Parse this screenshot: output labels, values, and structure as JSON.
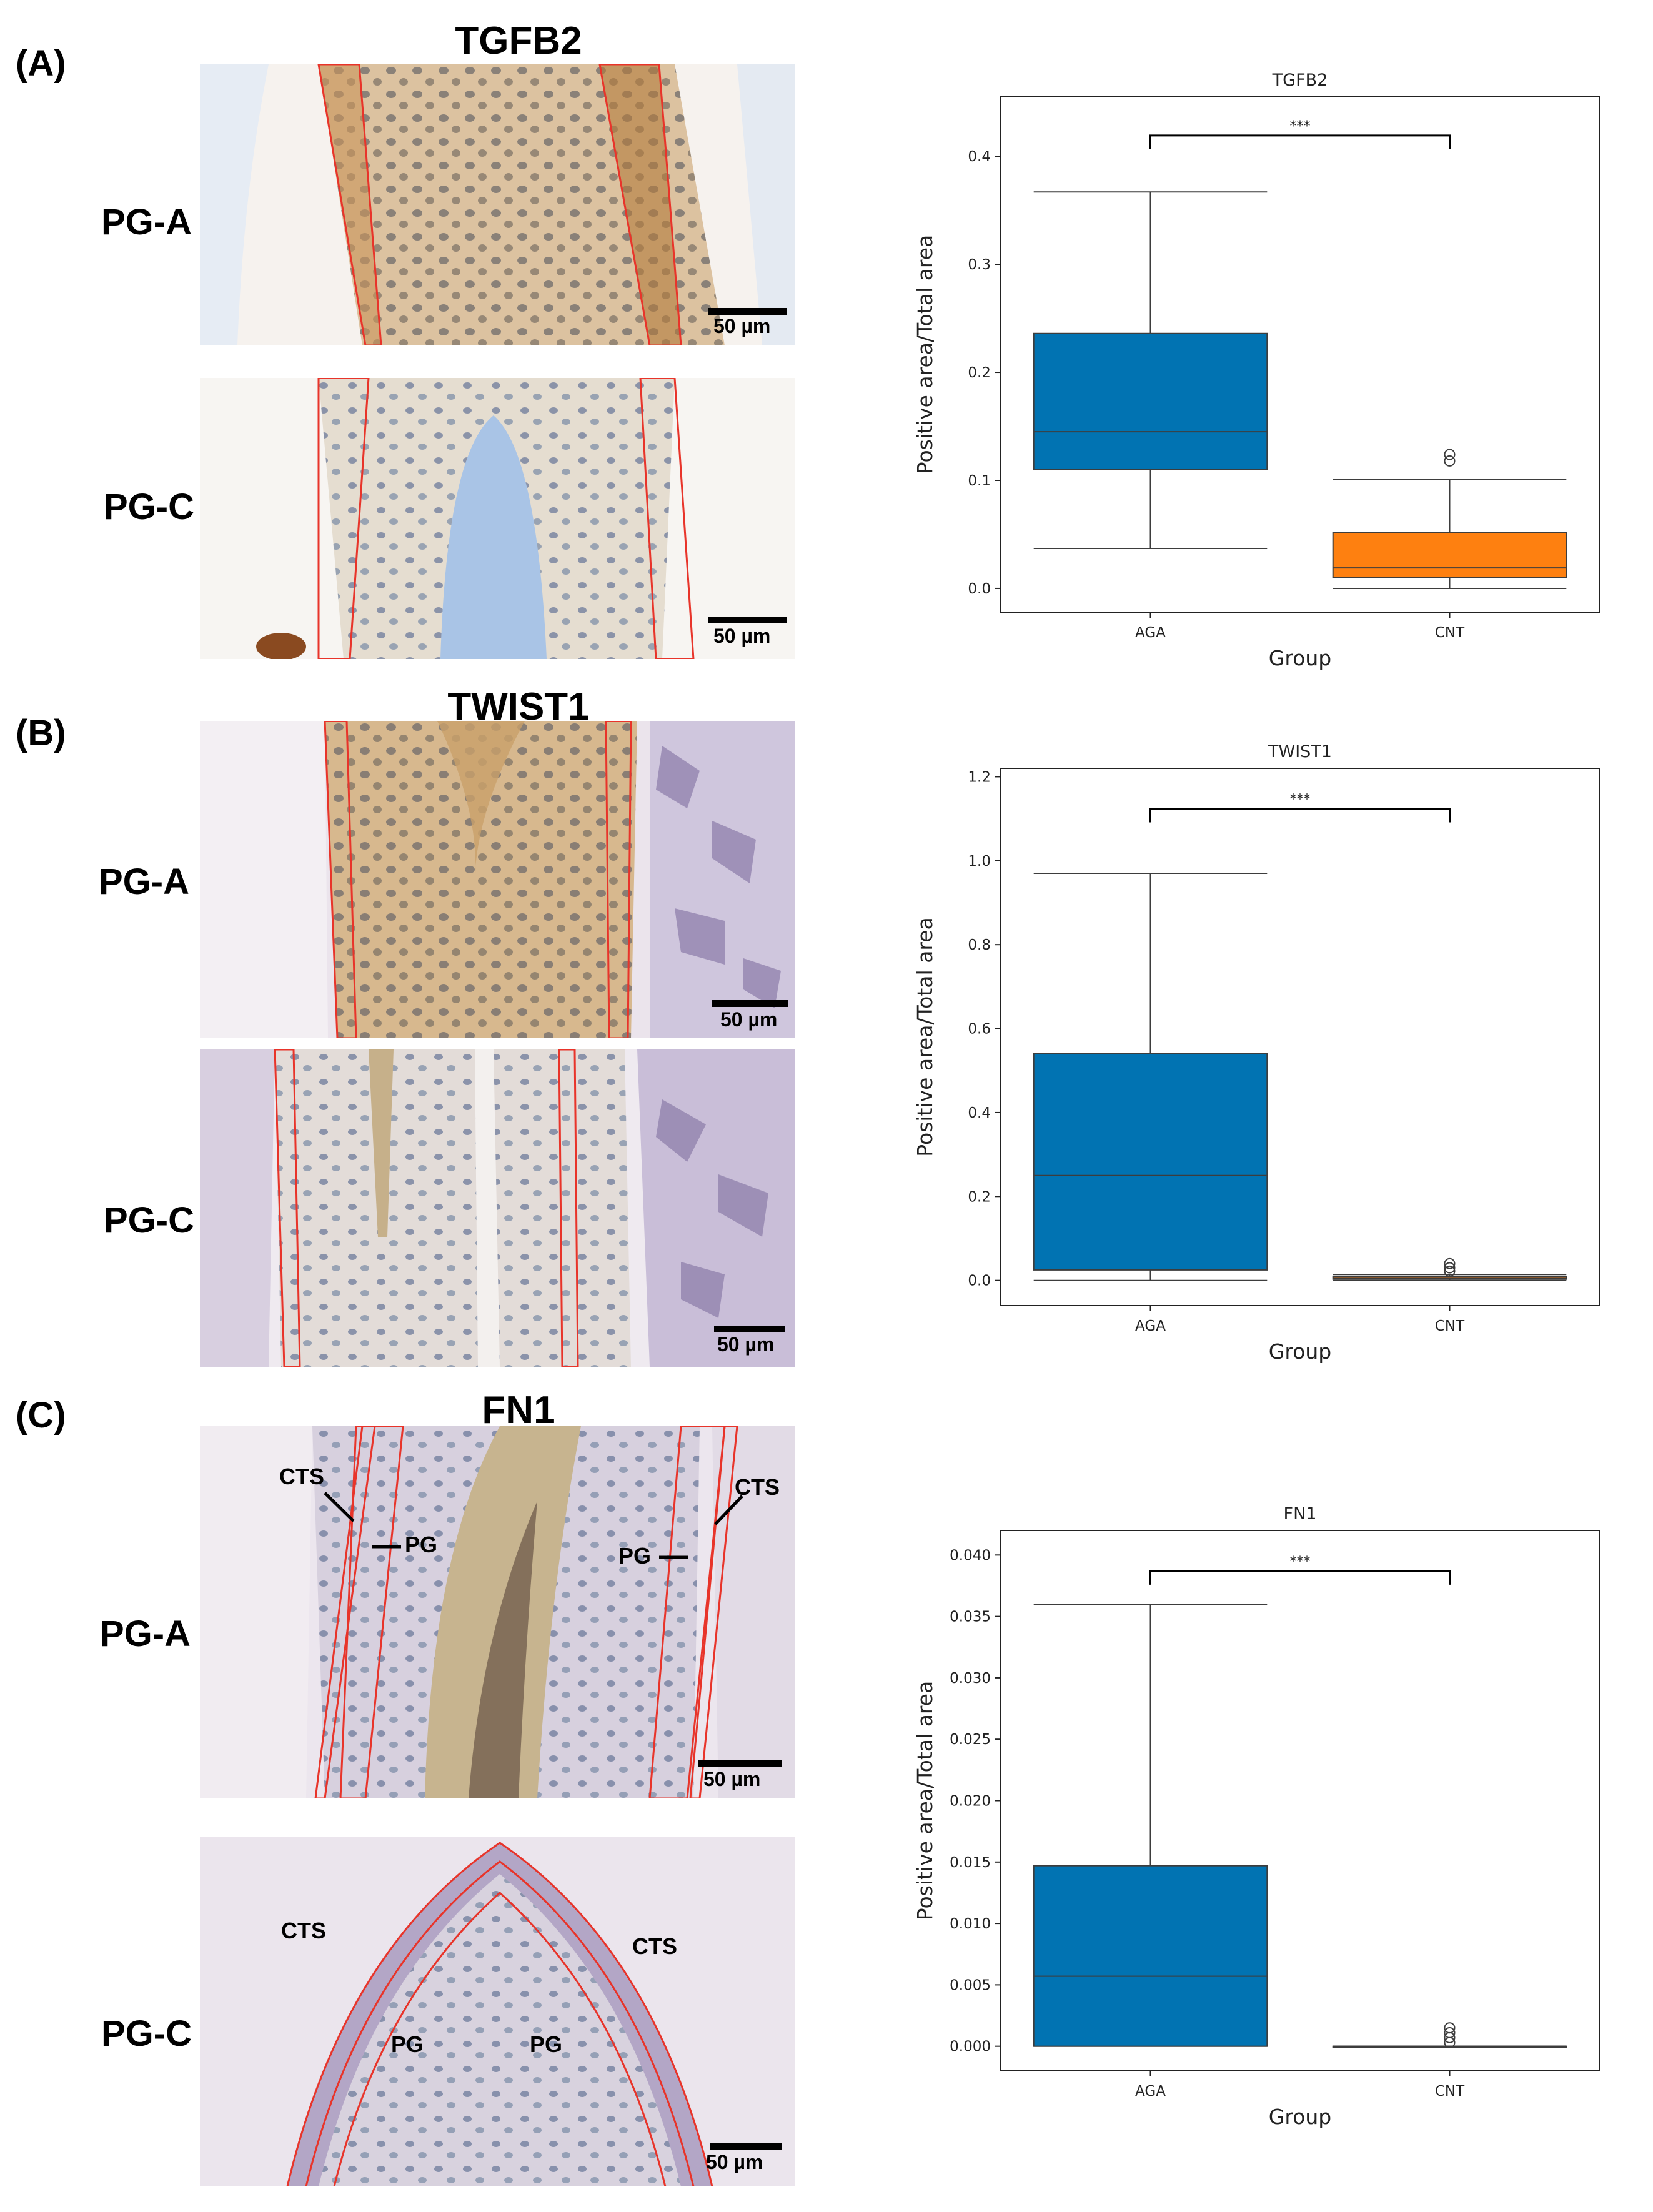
{
  "panels": [
    {
      "letter": "(A)",
      "marker": "TGFB2",
      "rows": [
        {
          "label": "PG-A",
          "scale": "50 µm"
        },
        {
          "label": "PG-C",
          "scale": "50 µm"
        }
      ]
    },
    {
      "letter": "(B)",
      "marker": "TWIST1",
      "rows": [
        {
          "label": "PG-A",
          "scale": "50 µm"
        },
        {
          "label": "PG-C",
          "scale": "50 µm"
        }
      ]
    },
    {
      "letter": "(C)",
      "marker": "FN1",
      "rows": [
        {
          "label": "PG-A",
          "scale": "50 µm"
        },
        {
          "label": "PG-C",
          "scale": "50 µm"
        }
      ],
      "annotations": {
        "cts": "CTS",
        "pg": "PG"
      }
    }
  ],
  "colors": {
    "aga": "#0173b2",
    "cnt": "#fe8010",
    "roi": "#e8342a"
  },
  "chart_data": [
    {
      "type": "box",
      "title": "TGFB2",
      "xlabel": "Group",
      "ylabel": "Positive area/Total area",
      "categories": [
        "AGA",
        "CNT"
      ],
      "ylim": [
        -0.022,
        0.455
      ],
      "yticks": [
        0.0,
        0.1,
        0.2,
        0.3,
        0.4
      ],
      "ytick_labels": [
        "0.0",
        "0.1",
        "0.2",
        "0.3",
        "0.4"
      ],
      "boxes": [
        {
          "group": "AGA",
          "whislo": 0.037,
          "q1": 0.11,
          "med": 0.145,
          "q3": 0.236,
          "whishi": 0.367,
          "fliers": []
        },
        {
          "group": "CNT",
          "whislo": 0.0,
          "q1": 0.01,
          "med": 0.019,
          "q3": 0.052,
          "whishi": 0.101,
          "fliers": [
            0.118,
            0.124
          ]
        }
      ],
      "significance": "***"
    },
    {
      "type": "box",
      "title": "TWIST1",
      "xlabel": "Group",
      "ylabel": "Positive area/Total area",
      "categories": [
        "AGA",
        "CNT"
      ],
      "ylim": [
        -0.06,
        1.22
      ],
      "yticks": [
        0.0,
        0.2,
        0.4,
        0.6,
        0.8,
        1.0,
        1.2
      ],
      "ytick_labels": [
        "0.0",
        "0.2",
        "0.4",
        "0.6",
        "0.8",
        "1.0",
        "1.2"
      ],
      "boxes": [
        {
          "group": "AGA",
          "whislo": 0.0,
          "q1": 0.025,
          "med": 0.25,
          "q3": 0.54,
          "whishi": 0.97,
          "fliers": []
        },
        {
          "group": "CNT",
          "whislo": 0.0,
          "q1": 0.003,
          "med": 0.005,
          "q3": 0.009,
          "whishi": 0.014,
          "fliers": [
            0.022,
            0.03,
            0.04
          ]
        }
      ],
      "significance": "***"
    },
    {
      "type": "box",
      "title": "FN1",
      "xlabel": "Group",
      "ylabel": "Positive area/Total area",
      "categories": [
        "AGA",
        "CNT"
      ],
      "ylim": [
        -0.002,
        0.042
      ],
      "yticks": [
        0.0,
        0.005,
        0.01,
        0.015,
        0.02,
        0.025,
        0.03,
        0.035,
        0.04
      ],
      "ytick_labels": [
        "0.000",
        "0.005",
        "0.010",
        "0.015",
        "0.020",
        "0.025",
        "0.030",
        "0.035",
        "0.040"
      ],
      "boxes": [
        {
          "group": "AGA",
          "whislo": 0.0,
          "q1": 0.0,
          "med": 0.0057,
          "q3": 0.0147,
          "whishi": 0.036,
          "fliers": []
        },
        {
          "group": "CNT",
          "whislo": 0.0,
          "q1": 0.0,
          "med": 0.0,
          "q3": 0.0,
          "whishi": 0.0,
          "fliers": [
            0.0003,
            0.0007,
            0.0011,
            0.0015
          ]
        }
      ],
      "significance": "***"
    }
  ]
}
